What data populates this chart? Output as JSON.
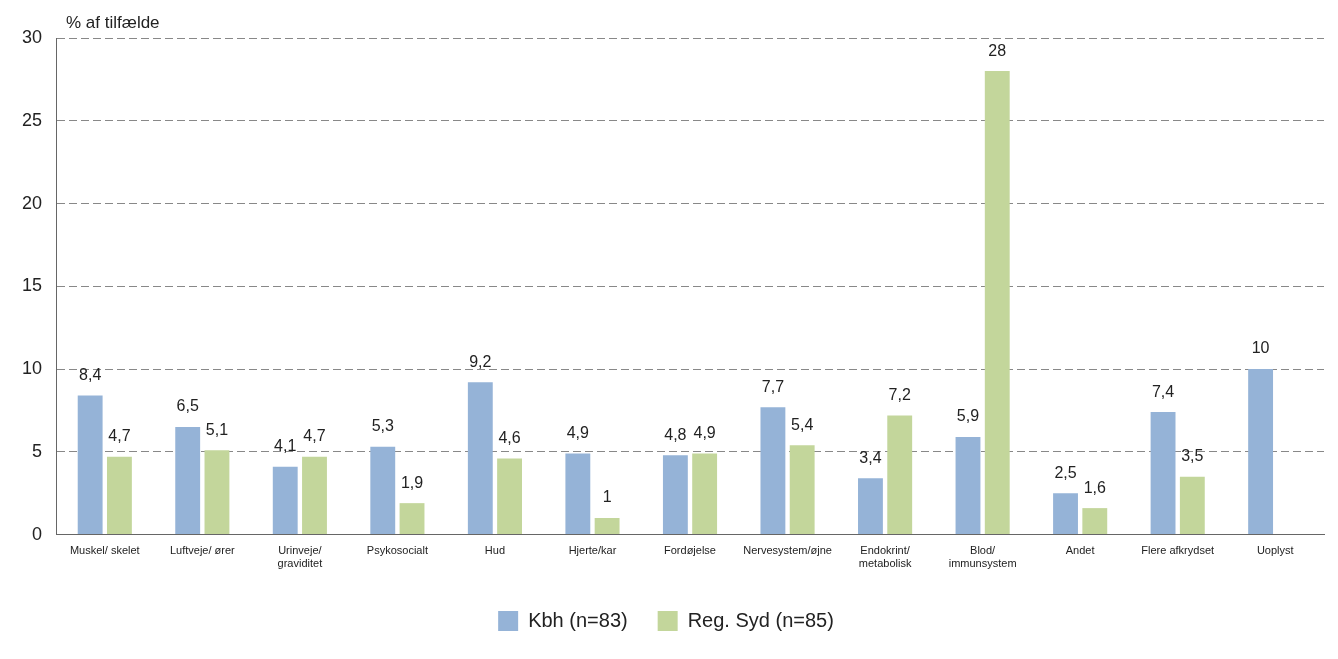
{
  "chart_data": {
    "type": "bar",
    "ylabel": "% af tilfælde",
    "categories": [
      "Muskel/ skelet",
      "Luftveje/ ører",
      "Urinveje/ graviditet",
      "Psykosocialt",
      "Hud",
      "Hjerte/kar",
      "Fordøjelse",
      "Nervesystem/øjne",
      "Endokrint/ metabolisk",
      "Blod/ immunsystem",
      "Andet",
      "Flere afkrydset",
      "Uoplyst"
    ],
    "series": [
      {
        "name": "Kbh (n=83)",
        "color": "#95b3d7",
        "values": [
          8.4,
          6.5,
          4.1,
          5.3,
          9.2,
          4.9,
          4.8,
          7.7,
          3.4,
          5.9,
          2.5,
          7.4,
          10
        ],
        "value_labels": [
          "8,4",
          "6,5",
          "4,1",
          "5,3",
          "9,2",
          "4,9",
          "4,8",
          "7,7",
          "3,4",
          "5,9",
          "2,5",
          "7,4",
          "10"
        ]
      },
      {
        "name": "Reg. Syd (n=85)",
        "color": "#c3d69b",
        "values": [
          4.7,
          5.1,
          4.7,
          1.9,
          4.6,
          1,
          4.9,
          5.4,
          7.2,
          28,
          1.6,
          3.5,
          null
        ],
        "value_labels": [
          "4,7",
          "5,1",
          "4,7",
          "1,9",
          "4,6",
          "1",
          "4,9",
          "5,4",
          "7,2",
          "28",
          "1,6",
          "3,5",
          null
        ]
      }
    ],
    "ylim": [
      0,
      30
    ],
    "yticks": [
      0,
      5,
      10,
      15,
      20,
      25,
      30
    ],
    "grid": "y",
    "legend": "bottom"
  }
}
